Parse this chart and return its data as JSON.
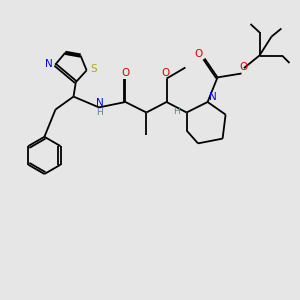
{
  "bg_color": "#e6e6e6",
  "bond_color": "#000000",
  "bond_lw": 1.3,
  "N_color": "#0000EE",
  "O_color": "#DD0000",
  "S_color": "#BBAA00",
  "H_color": "#558888",
  "font_size": 7.0,
  "double_sep": 0.04,
  "xlim": [
    0,
    10
  ],
  "ylim": [
    0,
    10
  ]
}
